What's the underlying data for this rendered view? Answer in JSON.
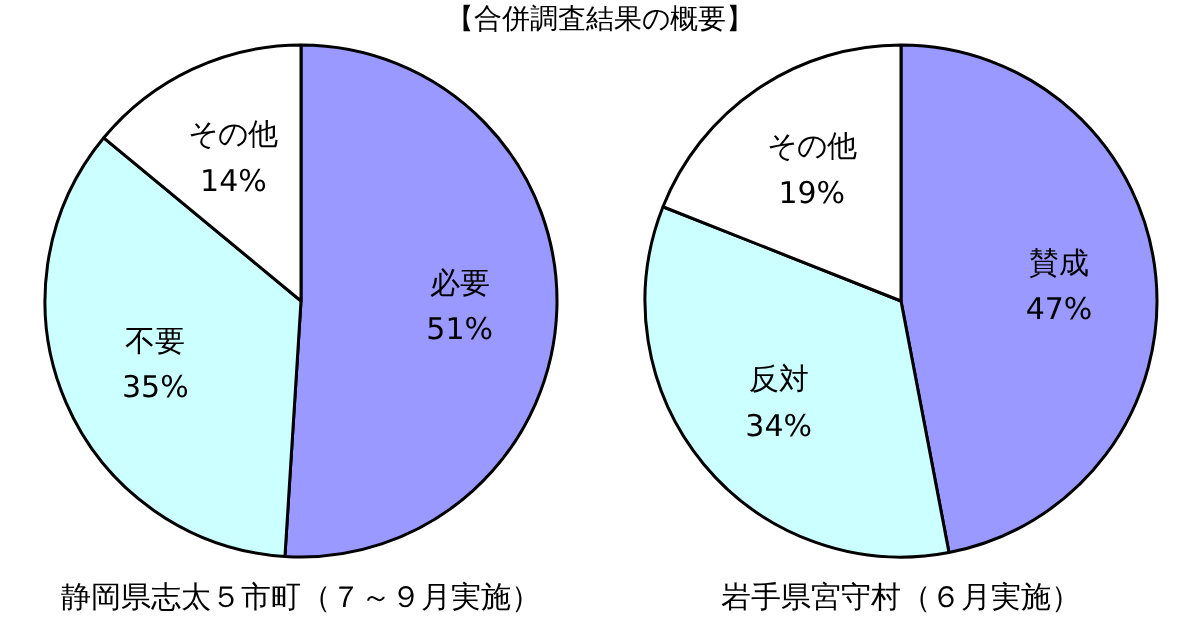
{
  "chart_data": [
    {
      "type": "pie",
      "title": "【合併調査結果の概要】",
      "xlabel": "静岡県志太５市町（７～９月実施）",
      "categories": [
        "必要",
        "不要",
        "その他"
      ],
      "values": [
        51,
        35,
        14
      ],
      "value_labels": [
        "51%",
        "35%",
        "14%"
      ],
      "colors": [
        "#9999ff",
        "#ccffff",
        "#ffffff"
      ]
    },
    {
      "type": "pie",
      "xlabel": "岩手県宮守村（６月実施）",
      "categories": [
        "賛成",
        "反対",
        "その他"
      ],
      "values": [
        47,
        34,
        19
      ],
      "value_labels": [
        "47%",
        "34%",
        "19%"
      ],
      "colors": [
        "#9999ff",
        "#ccffff",
        "#ffffff"
      ]
    }
  ]
}
